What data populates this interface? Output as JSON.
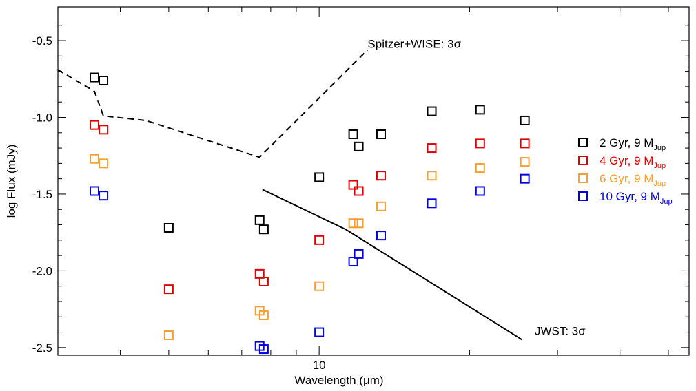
{
  "chart_data": {
    "type": "scatter",
    "title": "",
    "xlabel": "Wavelength (μm)",
    "ylabel": "log Flux (mJy)",
    "x_scale": "log",
    "xlim": [
      3,
      55
    ],
    "ylim": [
      -2.55,
      -0.28
    ],
    "x_ticks": [
      {
        "value": 10,
        "label": "10"
      }
    ],
    "y_ticks": [
      {
        "value": -0.5,
        "label": "-0.5"
      },
      {
        "value": -1.0,
        "label": "-1.0"
      },
      {
        "value": -1.5,
        "label": "-1.5"
      },
      {
        "value": -2.0,
        "label": "-2.0"
      },
      {
        "value": -2.5,
        "label": "-2.5"
      }
    ],
    "grid": false,
    "legend_position": "right",
    "series": [
      {
        "name": "2 Gyr, 9 MJup",
        "legend_main": "2 Gyr, 9 M",
        "legend_sub": "Jup",
        "color": "#000000",
        "marker": "open-square",
        "points": [
          {
            "x": 3.55,
            "y": -0.74
          },
          {
            "x": 3.7,
            "y": -0.76
          },
          {
            "x": 5.0,
            "y": -1.72
          },
          {
            "x": 7.6,
            "y": -1.67
          },
          {
            "x": 7.75,
            "y": -1.73
          },
          {
            "x": 10.0,
            "y": -1.39
          },
          {
            "x": 11.7,
            "y": -1.11
          },
          {
            "x": 12.0,
            "y": -1.19
          },
          {
            "x": 13.3,
            "y": -1.11
          },
          {
            "x": 16.8,
            "y": -0.96
          },
          {
            "x": 21.0,
            "y": -0.95
          },
          {
            "x": 25.8,
            "y": -1.02
          }
        ]
      },
      {
        "name": "4 Gyr, 9 MJup",
        "legend_main": "4 Gyr, 9 M",
        "legend_sub": "Jup",
        "color": "#e00000",
        "marker": "open-square",
        "points": [
          {
            "x": 3.55,
            "y": -1.05
          },
          {
            "x": 3.7,
            "y": -1.08
          },
          {
            "x": 5.0,
            "y": -2.12
          },
          {
            "x": 7.6,
            "y": -2.02
          },
          {
            "x": 7.75,
            "y": -2.07
          },
          {
            "x": 10.0,
            "y": -1.8
          },
          {
            "x": 11.7,
            "y": -1.44
          },
          {
            "x": 12.0,
            "y": -1.48
          },
          {
            "x": 13.3,
            "y": -1.38
          },
          {
            "x": 16.8,
            "y": -1.2
          },
          {
            "x": 21.0,
            "y": -1.17
          },
          {
            "x": 25.8,
            "y": -1.17
          }
        ]
      },
      {
        "name": "6 Gyr, 9 MJup",
        "legend_main": "6 Gyr, 9 M",
        "legend_sub": "Jup",
        "color": "#f5a030",
        "marker": "open-square",
        "points": [
          {
            "x": 3.55,
            "y": -1.27
          },
          {
            "x": 3.7,
            "y": -1.3
          },
          {
            "x": 5.0,
            "y": -2.42
          },
          {
            "x": 7.6,
            "y": -2.26
          },
          {
            "x": 7.75,
            "y": -2.29
          },
          {
            "x": 10.0,
            "y": -2.1
          },
          {
            "x": 11.7,
            "y": -1.69
          },
          {
            "x": 12.0,
            "y": -1.69
          },
          {
            "x": 13.3,
            "y": -1.58
          },
          {
            "x": 16.8,
            "y": -1.38
          },
          {
            "x": 21.0,
            "y": -1.33
          },
          {
            "x": 25.8,
            "y": -1.29
          }
        ]
      },
      {
        "name": "10 Gyr, 9 MJup",
        "legend_main": "10 Gyr, 9 M",
        "legend_sub": "Jup",
        "color": "#0000e0",
        "marker": "open-square",
        "points": [
          {
            "x": 3.55,
            "y": -1.48
          },
          {
            "x": 3.7,
            "y": -1.51
          },
          {
            "x": 7.6,
            "y": -2.49
          },
          {
            "x": 7.75,
            "y": -2.51
          },
          {
            "x": 10.0,
            "y": -2.4
          },
          {
            "x": 11.7,
            "y": -1.94
          },
          {
            "x": 12.0,
            "y": -1.89
          },
          {
            "x": 13.3,
            "y": -1.77
          },
          {
            "x": 16.8,
            "y": -1.56
          },
          {
            "x": 21.0,
            "y": -1.48
          },
          {
            "x": 25.8,
            "y": -1.4
          }
        ]
      }
    ],
    "limit_curves": [
      {
        "name": "Spitzer+WISE: 3σ",
        "style": "dashed",
        "color": "#000000",
        "points": [
          {
            "x": 3.0,
            "y": -0.69
          },
          {
            "x": 3.55,
            "y": -0.83
          },
          {
            "x": 3.7,
            "y": -0.99
          },
          {
            "x": 4.5,
            "y": -1.02
          },
          {
            "x": 7.6,
            "y": -1.26
          },
          {
            "x": 12.5,
            "y": -0.56
          }
        ]
      },
      {
        "name": "JWST: 3σ",
        "style": "solid",
        "color": "#000000",
        "points": [
          {
            "x": 7.7,
            "y": -1.47
          },
          {
            "x": 11.3,
            "y": -1.73
          },
          {
            "x": 25.5,
            "y": -2.45
          }
        ]
      }
    ],
    "annotations": [
      {
        "text": "Spitzer+WISE: 3σ",
        "x": 12.5,
        "y": -0.52
      },
      {
        "text": "JWST: 3σ",
        "x": 27.0,
        "y": -2.39
      }
    ]
  }
}
